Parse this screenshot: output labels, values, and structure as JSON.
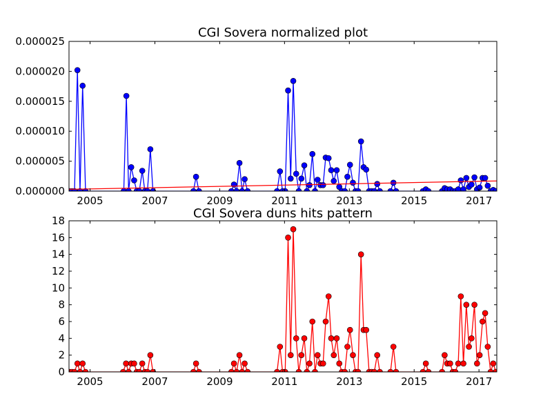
{
  "chart_data": [
    {
      "type": "line",
      "title": "CGI Sovera normalized plot",
      "xlim": [
        2004.35,
        2017.55
      ],
      "ylim": [
        0,
        2.5e-05
      ],
      "x_ticks": [
        {
          "v": 2005,
          "label": "2005"
        },
        {
          "v": 2007,
          "label": "2007"
        },
        {
          "v": 2009,
          "label": "2009"
        },
        {
          "v": 2011,
          "label": "2011"
        },
        {
          "v": 2013,
          "label": "2013"
        },
        {
          "v": 2015,
          "label": "2015"
        },
        {
          "v": 2017,
          "label": "2017"
        }
      ],
      "y_ticks": [
        {
          "v": 0,
          "label": "0.000000"
        },
        {
          "v": 5e-06,
          "label": "0.000005"
        },
        {
          "v": 1e-05,
          "label": "0.000010"
        },
        {
          "v": 1.5e-05,
          "label": "0.000015"
        },
        {
          "v": 2e-05,
          "label": "0.000020"
        },
        {
          "v": 2.5e-05,
          "label": "0.000025"
        }
      ],
      "series": [
        {
          "color": "#0000ff",
          "marker": "circle",
          "points": [
            [
              2004.36,
              0
            ],
            [
              2004.44,
              0
            ],
            [
              2004.52,
              0
            ],
            [
              2004.61,
              2.02e-05
            ],
            [
              2004.69,
              0
            ],
            [
              2004.77,
              1.76e-05
            ],
            [
              2004.86,
              0
            ],
            [
              2006.04,
              0
            ],
            [
              2006.12,
              1.59e-05
            ],
            [
              2006.19,
              0
            ],
            [
              2006.27,
              4e-06
            ],
            [
              2006.36,
              1.8e-06
            ],
            [
              2006.44,
              0
            ],
            [
              2006.52,
              0
            ],
            [
              2006.61,
              3.4e-06
            ],
            [
              2006.69,
              0
            ],
            [
              2006.77,
              0
            ],
            [
              2006.86,
              7e-06
            ],
            [
              2006.94,
              0
            ],
            [
              2008.19,
              0
            ],
            [
              2008.27,
              2.4e-06
            ],
            [
              2008.36,
              0
            ],
            [
              2009.36,
              0
            ],
            [
              2009.44,
              1.1e-06
            ],
            [
              2009.52,
              0
            ],
            [
              2009.61,
              4.7e-06
            ],
            [
              2009.69,
              0
            ],
            [
              2009.77,
              2e-06
            ],
            [
              2009.86,
              0
            ],
            [
              2010.77,
              0
            ],
            [
              2010.86,
              3.3e-06
            ],
            [
              2010.94,
              0
            ],
            [
              2011.02,
              0
            ],
            [
              2011.11,
              1.68e-05
            ],
            [
              2011.19,
              2.1e-06
            ],
            [
              2011.27,
              1.84e-05
            ],
            [
              2011.36,
              2.9e-06
            ],
            [
              2011.44,
              0
            ],
            [
              2011.52,
              2.1e-06
            ],
            [
              2011.61,
              4.3e-06
            ],
            [
              2011.69,
              0
            ],
            [
              2011.77,
              1e-06
            ],
            [
              2011.86,
              6.2e-06
            ],
            [
              2011.94,
              0
            ],
            [
              2012.02,
              1.9e-06
            ],
            [
              2012.11,
              1e-06
            ],
            [
              2012.19,
              1e-06
            ],
            [
              2012.27,
              5.6e-06
            ],
            [
              2012.36,
              5.5e-06
            ],
            [
              2012.44,
              3.5e-06
            ],
            [
              2012.52,
              1.7e-06
            ],
            [
              2012.61,
              3.5e-06
            ],
            [
              2012.69,
              7e-07
            ],
            [
              2012.77,
              0
            ],
            [
              2012.86,
              0
            ],
            [
              2012.94,
              2.4e-06
            ],
            [
              2013.02,
              4.4e-06
            ],
            [
              2013.11,
              1.4e-06
            ],
            [
              2013.19,
              0
            ],
            [
              2013.27,
              0
            ],
            [
              2013.36,
              8.3e-06
            ],
            [
              2013.44,
              4e-06
            ],
            [
              2013.52,
              3.6e-06
            ],
            [
              2013.61,
              0
            ],
            [
              2013.69,
              0
            ],
            [
              2013.77,
              0
            ],
            [
              2013.86,
              1.2e-06
            ],
            [
              2013.94,
              0
            ],
            [
              2014.27,
              0
            ],
            [
              2014.36,
              1.4e-06
            ],
            [
              2014.44,
              0
            ],
            [
              2015.27,
              0
            ],
            [
              2015.36,
              3e-07
            ],
            [
              2015.44,
              0
            ],
            [
              2015.86,
              0
            ],
            [
              2015.94,
              5e-07
            ],
            [
              2016.02,
              3e-07
            ],
            [
              2016.11,
              3e-07
            ],
            [
              2016.19,
              0
            ],
            [
              2016.27,
              0
            ],
            [
              2016.36,
              3e-07
            ],
            [
              2016.44,
              1.8e-06
            ],
            [
              2016.52,
              3e-07
            ],
            [
              2016.61,
              2.2e-06
            ],
            [
              2016.69,
              7e-07
            ],
            [
              2016.77,
              1.1e-06
            ],
            [
              2016.86,
              2.3e-06
            ],
            [
              2016.94,
              3e-07
            ],
            [
              2017.02,
              6e-07
            ],
            [
              2017.11,
              2.2e-06
            ],
            [
              2017.19,
              2.2e-06
            ],
            [
              2017.27,
              9e-07
            ],
            [
              2017.36,
              0
            ],
            [
              2017.44,
              2e-07
            ],
            [
              2017.52,
              0
            ]
          ]
        },
        {
          "color": "#ff0000",
          "marker": "none",
          "points": [
            [
              2004.35,
              3e-07
            ],
            [
              2017.55,
              1.7e-06
            ]
          ]
        }
      ]
    },
    {
      "type": "line",
      "title": "CGI Sovera duns hits pattern",
      "xlim": [
        2004.35,
        2017.55
      ],
      "ylim": [
        0,
        18
      ],
      "x_ticks": [
        {
          "v": 2005,
          "label": "2005"
        },
        {
          "v": 2007,
          "label": "2007"
        },
        {
          "v": 2009,
          "label": "2009"
        },
        {
          "v": 2011,
          "label": "2011"
        },
        {
          "v": 2013,
          "label": "2013"
        },
        {
          "v": 2015,
          "label": "2015"
        },
        {
          "v": 2017,
          "label": "2017"
        }
      ],
      "y_ticks": [
        {
          "v": 0,
          "label": "0"
        },
        {
          "v": 2,
          "label": "2"
        },
        {
          "v": 4,
          "label": "4"
        },
        {
          "v": 6,
          "label": "6"
        },
        {
          "v": 8,
          "label": "8"
        },
        {
          "v": 10,
          "label": "10"
        },
        {
          "v": 12,
          "label": "12"
        },
        {
          "v": 14,
          "label": "14"
        },
        {
          "v": 16,
          "label": "16"
        },
        {
          "v": 18,
          "label": "18"
        }
      ],
      "series": [
        {
          "color": "#ff0000",
          "marker": "circle",
          "points": [
            [
              2004.36,
              0
            ],
            [
              2004.44,
              0
            ],
            [
              2004.52,
              0
            ],
            [
              2004.61,
              1
            ],
            [
              2004.69,
              0
            ],
            [
              2004.77,
              1
            ],
            [
              2004.86,
              0
            ],
            [
              2006.02,
              0
            ],
            [
              2006.11,
              1
            ],
            [
              2006.19,
              0
            ],
            [
              2006.27,
              1
            ],
            [
              2006.36,
              1
            ],
            [
              2006.44,
              0
            ],
            [
              2006.52,
              0
            ],
            [
              2006.61,
              1
            ],
            [
              2006.69,
              0
            ],
            [
              2006.77,
              0
            ],
            [
              2006.86,
              2
            ],
            [
              2006.94,
              0
            ],
            [
              2008.19,
              0
            ],
            [
              2008.27,
              1
            ],
            [
              2008.36,
              0
            ],
            [
              2009.36,
              0
            ],
            [
              2009.44,
              1
            ],
            [
              2009.52,
              0
            ],
            [
              2009.61,
              2
            ],
            [
              2009.69,
              0
            ],
            [
              2009.77,
              1
            ],
            [
              2009.86,
              0
            ],
            [
              2010.77,
              0
            ],
            [
              2010.86,
              3
            ],
            [
              2010.94,
              0
            ],
            [
              2011.02,
              0
            ],
            [
              2011.11,
              16
            ],
            [
              2011.19,
              2
            ],
            [
              2011.27,
              17
            ],
            [
              2011.36,
              4
            ],
            [
              2011.44,
              0
            ],
            [
              2011.52,
              2
            ],
            [
              2011.61,
              4
            ],
            [
              2011.69,
              0
            ],
            [
              2011.77,
              1
            ],
            [
              2011.86,
              6
            ],
            [
              2011.94,
              0
            ],
            [
              2012.02,
              2
            ],
            [
              2012.11,
              1
            ],
            [
              2012.19,
              1
            ],
            [
              2012.27,
              6
            ],
            [
              2012.36,
              9
            ],
            [
              2012.44,
              4
            ],
            [
              2012.52,
              2
            ],
            [
              2012.61,
              4
            ],
            [
              2012.69,
              1
            ],
            [
              2012.77,
              0
            ],
            [
              2012.86,
              0
            ],
            [
              2012.94,
              3
            ],
            [
              2013.02,
              5
            ],
            [
              2013.11,
              2
            ],
            [
              2013.19,
              0
            ],
            [
              2013.27,
              0
            ],
            [
              2013.36,
              14
            ],
            [
              2013.44,
              5
            ],
            [
              2013.52,
              5
            ],
            [
              2013.61,
              0
            ],
            [
              2013.69,
              0
            ],
            [
              2013.77,
              0
            ],
            [
              2013.86,
              2
            ],
            [
              2013.94,
              0
            ],
            [
              2014.27,
              0
            ],
            [
              2014.36,
              3
            ],
            [
              2014.44,
              0
            ],
            [
              2015.27,
              0
            ],
            [
              2015.36,
              1
            ],
            [
              2015.44,
              0
            ],
            [
              2015.86,
              0
            ],
            [
              2015.94,
              2
            ],
            [
              2016.02,
              1
            ],
            [
              2016.11,
              1
            ],
            [
              2016.19,
              0
            ],
            [
              2016.27,
              0
            ],
            [
              2016.36,
              1
            ],
            [
              2016.44,
              9
            ],
            [
              2016.52,
              1
            ],
            [
              2016.61,
              8
            ],
            [
              2016.69,
              3
            ],
            [
              2016.77,
              4
            ],
            [
              2016.86,
              8
            ],
            [
              2016.94,
              1
            ],
            [
              2017.02,
              2
            ],
            [
              2017.11,
              6
            ],
            [
              2017.19,
              7
            ],
            [
              2017.27,
              3
            ],
            [
              2017.36,
              0
            ],
            [
              2017.44,
              1
            ],
            [
              2017.52,
              0
            ]
          ]
        }
      ]
    }
  ]
}
